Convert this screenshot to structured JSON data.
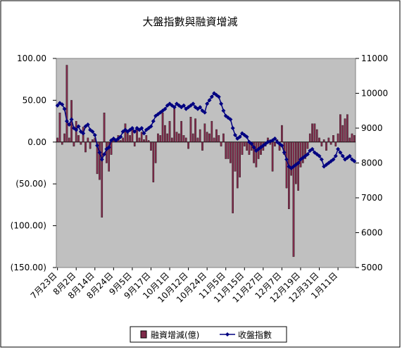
{
  "chart_data": {
    "type": "bar_line",
    "title": "大盤指數與融資增減",
    "categories": [
      "7月23日",
      null,
      null,
      null,
      null,
      null,
      null,
      null,
      "8月2日",
      null,
      null,
      null,
      null,
      null,
      null,
      null,
      "8月14日",
      null,
      null,
      null,
      null,
      null,
      null,
      null,
      "8月24日",
      null,
      null,
      null,
      null,
      null,
      null,
      null,
      "9月5日",
      null,
      null,
      null,
      null,
      null,
      null,
      null,
      "9月17日",
      null,
      null,
      null,
      null,
      null,
      null,
      null,
      "10月1日",
      null,
      null,
      null,
      null,
      null,
      null,
      null,
      "10月12日",
      null,
      null,
      null,
      null,
      null,
      null,
      null,
      "10月24日",
      null,
      null,
      null,
      null,
      null,
      null,
      null,
      "11月5日",
      null,
      null,
      null,
      null,
      null,
      null,
      null,
      "11月15日",
      null,
      null,
      null,
      null,
      null,
      null,
      null,
      "11月27日",
      null,
      null,
      null,
      null,
      null,
      null,
      null,
      "12月7日",
      null,
      null,
      null,
      null,
      null,
      null,
      null,
      "12月19日",
      null,
      null,
      null,
      null,
      null,
      null,
      null,
      "12月31日",
      null,
      null,
      null,
      null,
      null,
      null,
      null,
      "1月11日",
      null,
      null,
      null,
      null,
      null,
      null,
      null
    ],
    "series": [
      {
        "name": "融資增減(億)",
        "color": "#7f2a4a",
        "values": [
          5,
          35,
          -3,
          10,
          92,
          5,
          50,
          -5,
          25,
          8,
          -3,
          18,
          -12,
          5,
          -8,
          3,
          5,
          -38,
          -45,
          -90,
          35,
          -25,
          -35,
          -15,
          5,
          3,
          8,
          2,
          5,
          22,
          12,
          8,
          15,
          -5,
          18,
          5,
          12,
          3,
          8,
          2,
          -10,
          -48,
          -25,
          10,
          8,
          35,
          20,
          10,
          25,
          5,
          40,
          12,
          10,
          25,
          8,
          5,
          -8,
          30,
          10,
          28,
          5,
          15,
          -10,
          22,
          12,
          10,
          25,
          5,
          15,
          8,
          -5,
          10,
          -20,
          -20,
          -25,
          -85,
          -35,
          -55,
          -42,
          -15,
          -5,
          -10,
          -15,
          -10,
          -25,
          -30,
          -20,
          -15,
          -10,
          -5,
          5,
          -3,
          -35,
          -5,
          3,
          -10,
          20,
          -15,
          -55,
          -80,
          -40,
          -137,
          -50,
          -58,
          -30,
          -25,
          -20,
          -8,
          10,
          22,
          22,
          15,
          5,
          -5,
          3,
          -10,
          5,
          -3,
          8,
          -5,
          10,
          33,
          20,
          28,
          33,
          5,
          10,
          8
        ]
      },
      {
        "name": "收盤指數",
        "color": "#000080",
        "axis": "y2",
        "values": [
          9650,
          9720,
          9680,
          9550,
          9200,
          9100,
          9250,
          9000,
          8950,
          9050,
          8900,
          8850,
          9050,
          9100,
          8950,
          8900,
          8800,
          8500,
          8300,
          8100,
          8250,
          8400,
          8450,
          8650,
          8700,
          8650,
          8700,
          8750,
          8900,
          8950,
          8900,
          8950,
          9000,
          8900,
          9000,
          8950,
          9000,
          8850,
          8950,
          9000,
          9050,
          9200,
          9350,
          9400,
          9450,
          9500,
          9550,
          9650,
          9700,
          9650,
          9600,
          9700,
          9650,
          9600,
          9650,
          9550,
          9600,
          9650,
          9700,
          9600,
          9550,
          9600,
          9500,
          9450,
          9700,
          9800,
          9900,
          10000,
          9950,
          9900,
          9700,
          9500,
          9350,
          9300,
          9250,
          9000,
          8800,
          8700,
          8750,
          8850,
          8800,
          8750,
          8600,
          8550,
          8450,
          8350,
          8400,
          8450,
          8500,
          8550,
          8600,
          8620,
          8650,
          8700,
          8600,
          8550,
          8500,
          8300,
          8100,
          7900,
          7850,
          7900,
          7950,
          8000,
          8100,
          8150,
          8200,
          8250,
          8350,
          8400,
          8300,
          8250,
          8200,
          8100,
          7900,
          7950,
          8000,
          8050,
          8100,
          8200,
          8400,
          8300,
          8200,
          8100,
          8150,
          8200,
          8100,
          8050
        ]
      }
    ],
    "ylim": [
      -150,
      100
    ],
    "yticks": [
      {
        "value": 100,
        "label": "100.00"
      },
      {
        "value": 50,
        "label": "50.00"
      },
      {
        "value": 0,
        "label": "0.00"
      },
      {
        "value": -50,
        "label": "(50.00)"
      },
      {
        "value": -100,
        "label": "(100.00)"
      },
      {
        "value": -150,
        "label": "(150.00)"
      }
    ],
    "y2lim": [
      5000,
      11000
    ],
    "y2ticks": [
      5000,
      6000,
      7000,
      8000,
      9000,
      10000,
      11000
    ],
    "legend": "bottom"
  }
}
